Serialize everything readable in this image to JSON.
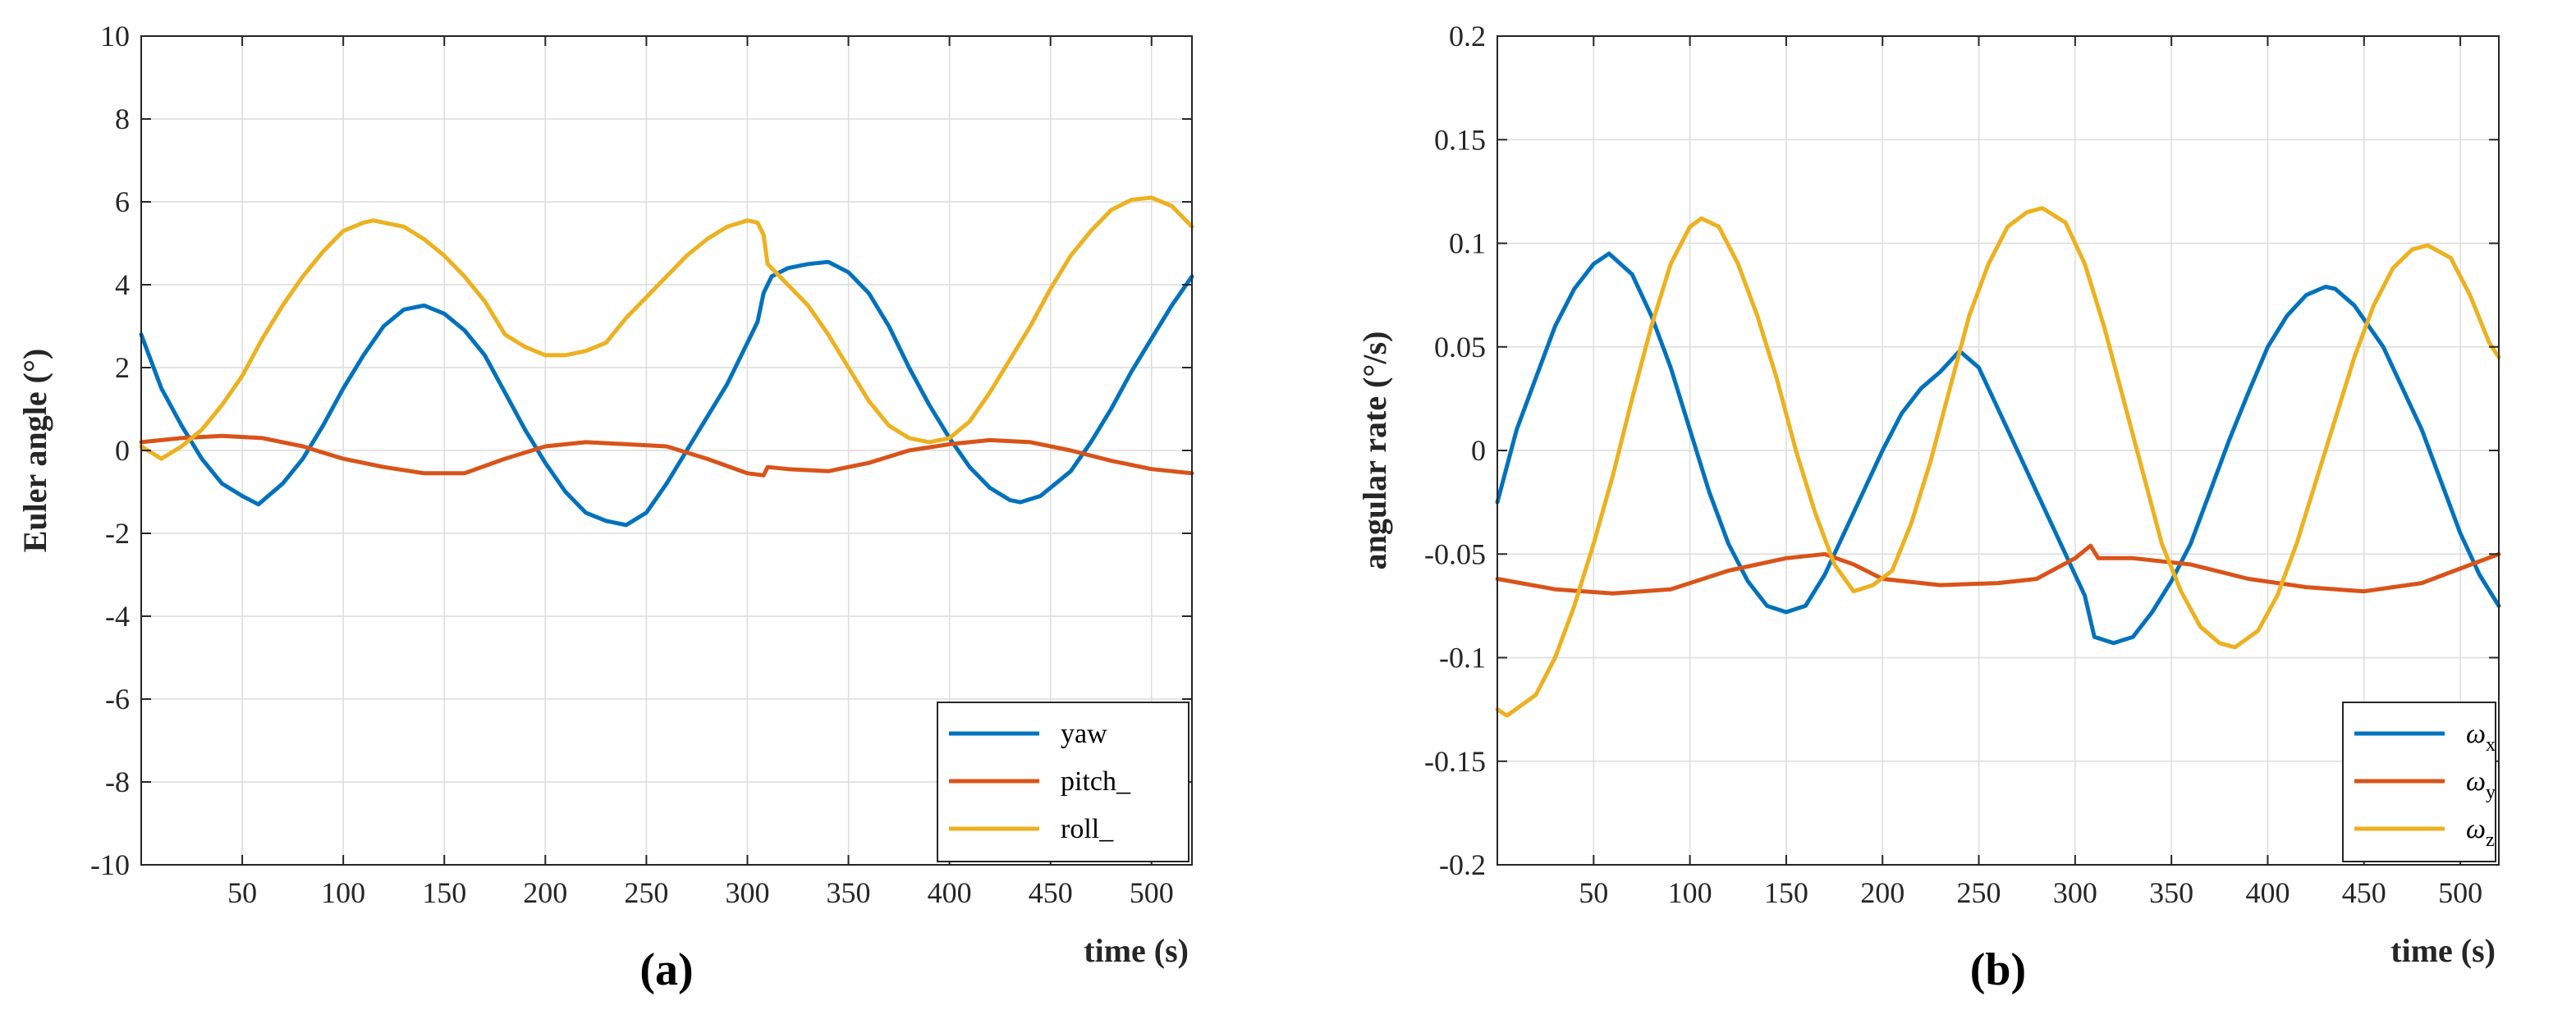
{
  "chart_data": [
    {
      "type": "line",
      "panel_label": "(a)",
      "xlabel": "time (s)",
      "ylabel": "Euler angle (°)",
      "xlim": [
        0,
        520
      ],
      "ylim": [
        -10,
        10
      ],
      "xticks": [
        50,
        100,
        150,
        200,
        250,
        300,
        350,
        400,
        450,
        500
      ],
      "xtick_labels": [
        "50",
        "100",
        "150",
        "200",
        "250",
        "300",
        "350",
        "400",
        "450",
        "500"
      ],
      "yticks": [
        -10,
        -8,
        -6,
        -4,
        -2,
        0,
        2,
        4,
        6,
        8,
        10
      ],
      "ytick_labels": [
        "-10",
        "-8",
        "-6",
        "-4",
        "-2",
        "0",
        "2",
        "4",
        "6",
        "8",
        "10"
      ],
      "grid": true,
      "legend": "bottom-right",
      "series": [
        {
          "name": "yaw",
          "color": "#0072BD",
          "x": [
            0,
            10,
            20,
            30,
            40,
            50,
            58,
            70,
            80,
            90,
            100,
            110,
            120,
            130,
            140,
            150,
            160,
            170,
            180,
            190,
            200,
            210,
            220,
            230,
            240,
            250,
            260,
            270,
            280,
            290,
            300,
            305,
            308,
            312,
            320,
            330,
            340,
            350,
            360,
            370,
            380,
            390,
            400,
            410,
            420,
            430,
            435,
            445,
            460,
            470,
            480,
            490,
            500,
            510,
            520
          ],
          "y": [
            2.8,
            1.5,
            0.6,
            -0.2,
            -0.8,
            -1.1,
            -1.3,
            -0.8,
            -0.2,
            0.6,
            1.5,
            2.3,
            3.0,
            3.4,
            3.5,
            3.3,
            2.9,
            2.3,
            1.4,
            0.5,
            -0.3,
            -1.0,
            -1.5,
            -1.7,
            -1.8,
            -1.5,
            -0.8,
            0.0,
            0.8,
            1.6,
            2.6,
            3.1,
            3.8,
            4.2,
            4.4,
            4.5,
            4.55,
            4.3,
            3.8,
            3.0,
            2.0,
            1.1,
            0.3,
            -0.4,
            -0.9,
            -1.2,
            -1.25,
            -1.1,
            -0.5,
            0.2,
            1.0,
            1.9,
            2.7,
            3.5,
            4.2
          ]
        },
        {
          "name": "pitch_",
          "color": "#D95319",
          "x": [
            0,
            20,
            40,
            60,
            80,
            100,
            120,
            140,
            160,
            180,
            200,
            220,
            240,
            260,
            280,
            300,
            308,
            310,
            320,
            340,
            360,
            380,
            400,
            420,
            440,
            460,
            480,
            500,
            520
          ],
          "y": [
            0.2,
            0.3,
            0.35,
            0.3,
            0.1,
            -0.2,
            -0.4,
            -0.55,
            -0.55,
            -0.2,
            0.1,
            0.2,
            0.15,
            0.1,
            -0.2,
            -0.55,
            -0.6,
            -0.4,
            -0.45,
            -0.5,
            -0.3,
            0.0,
            0.15,
            0.25,
            0.2,
            0.0,
            -0.25,
            -0.45,
            -0.55
          ]
        },
        {
          "name": "roll_",
          "color": "#EDB120",
          "x": [
            0,
            10,
            20,
            30,
            40,
            50,
            60,
            70,
            80,
            90,
            100,
            110,
            115,
            120,
            130,
            140,
            150,
            160,
            170,
            180,
            190,
            200,
            210,
            220,
            230,
            240,
            250,
            260,
            270,
            280,
            290,
            300,
            305,
            308,
            310,
            320,
            330,
            340,
            350,
            360,
            370,
            380,
            390,
            400,
            410,
            420,
            430,
            440,
            450,
            460,
            470,
            480,
            490,
            500,
            510,
            520
          ],
          "y": [
            0.1,
            -0.2,
            0.1,
            0.5,
            1.1,
            1.8,
            2.7,
            3.5,
            4.2,
            4.8,
            5.3,
            5.5,
            5.55,
            5.5,
            5.4,
            5.1,
            4.7,
            4.2,
            3.6,
            2.8,
            2.5,
            2.3,
            2.3,
            2.4,
            2.6,
            3.2,
            3.7,
            4.2,
            4.7,
            5.1,
            5.4,
            5.55,
            5.5,
            5.2,
            4.5,
            4.0,
            3.5,
            2.8,
            2.0,
            1.2,
            0.6,
            0.3,
            0.2,
            0.3,
            0.7,
            1.4,
            2.2,
            3.0,
            3.9,
            4.7,
            5.3,
            5.8,
            6.05,
            6.1,
            5.9,
            5.4
          ]
        }
      ]
    },
    {
      "type": "line",
      "panel_label": "(b)",
      "xlabel": "time (s)",
      "ylabel": "angular rate (°/s)",
      "xlim": [
        0,
        520
      ],
      "ylim": [
        -0.2,
        0.2
      ],
      "xticks": [
        50,
        100,
        150,
        200,
        250,
        300,
        350,
        400,
        450,
        500
      ],
      "xtick_labels": [
        "50",
        "100",
        "150",
        "200",
        "250",
        "300",
        "350",
        "400",
        "450",
        "500"
      ],
      "yticks": [
        -0.2,
        -0.15,
        -0.1,
        -0.05,
        0,
        0.05,
        0.1,
        0.15,
        0.2
      ],
      "ytick_labels": [
        "-0.2",
        "-0.15",
        "-0.1",
        "-0.05",
        "0",
        "0.05",
        "0.1",
        "0.15",
        "0.2"
      ],
      "grid": true,
      "legend": "bottom-right",
      "series": [
        {
          "name": "ω",
          "subscript": "x",
          "color": "#0072BD",
          "x": [
            0,
            10,
            20,
            30,
            40,
            50,
            58,
            70,
            80,
            90,
            100,
            110,
            120,
            130,
            140,
            150,
            160,
            170,
            180,
            190,
            200,
            210,
            220,
            230,
            240,
            250,
            260,
            270,
            280,
            290,
            300,
            305,
            310,
            320,
            330,
            340,
            350,
            360,
            370,
            380,
            390,
            400,
            410,
            420,
            430,
            435,
            445,
            460,
            470,
            480,
            490,
            500,
            510,
            520
          ],
          "y": [
            -0.025,
            0.01,
            0.035,
            0.06,
            0.078,
            0.09,
            0.095,
            0.085,
            0.065,
            0.04,
            0.01,
            -0.02,
            -0.045,
            -0.063,
            -0.075,
            -0.078,
            -0.075,
            -0.06,
            -0.04,
            -0.02,
            0.0,
            0.018,
            0.03,
            0.038,
            0.048,
            0.04,
            0.02,
            0.0,
            -0.02,
            -0.04,
            -0.06,
            -0.07,
            -0.09,
            -0.093,
            -0.09,
            -0.078,
            -0.063,
            -0.045,
            -0.02,
            0.005,
            0.028,
            0.05,
            0.065,
            0.075,
            0.079,
            0.078,
            0.07,
            0.05,
            0.03,
            0.01,
            -0.015,
            -0.04,
            -0.06,
            -0.075
          ]
        },
        {
          "name": "ω",
          "subscript": "y",
          "color": "#D95319",
          "x": [
            0,
            30,
            60,
            90,
            120,
            150,
            170,
            185,
            200,
            230,
            260,
            280,
            300,
            308,
            312,
            330,
            360,
            390,
            420,
            450,
            480,
            500,
            520
          ],
          "y": [
            -0.062,
            -0.067,
            -0.069,
            -0.067,
            -0.058,
            -0.052,
            -0.05,
            -0.055,
            -0.062,
            -0.065,
            -0.064,
            -0.062,
            -0.052,
            -0.046,
            -0.052,
            -0.052,
            -0.055,
            -0.062,
            -0.066,
            -0.068,
            -0.064,
            -0.057,
            -0.05
          ]
        },
        {
          "name": "ω",
          "subscript": "z",
          "color": "#EDB120",
          "x": [
            0,
            5,
            20,
            30,
            40,
            50,
            60,
            70,
            80,
            90,
            100,
            106,
            115,
            125,
            135,
            145,
            155,
            165,
            175,
            185,
            195,
            205,
            215,
            225,
            235,
            245,
            255,
            265,
            275,
            283,
            295,
            305,
            315,
            325,
            335,
            345,
            355,
            365,
            375,
            383,
            395,
            405,
            415,
            425,
            435,
            445,
            455,
            465,
            475,
            483,
            495,
            505,
            515,
            520
          ],
          "y": [
            -0.125,
            -0.128,
            -0.118,
            -0.1,
            -0.075,
            -0.045,
            -0.012,
            0.025,
            0.06,
            0.09,
            0.108,
            0.112,
            0.108,
            0.09,
            0.065,
            0.035,
            0.0,
            -0.03,
            -0.055,
            -0.068,
            -0.065,
            -0.058,
            -0.035,
            -0.005,
            0.03,
            0.065,
            0.09,
            0.108,
            0.115,
            0.117,
            0.11,
            0.09,
            0.06,
            0.025,
            -0.01,
            -0.045,
            -0.068,
            -0.085,
            -0.093,
            -0.095,
            -0.087,
            -0.07,
            -0.045,
            -0.015,
            0.015,
            0.045,
            0.07,
            0.088,
            0.097,
            0.099,
            0.093,
            0.075,
            0.052,
            0.045
          ]
        }
      ]
    }
  ]
}
